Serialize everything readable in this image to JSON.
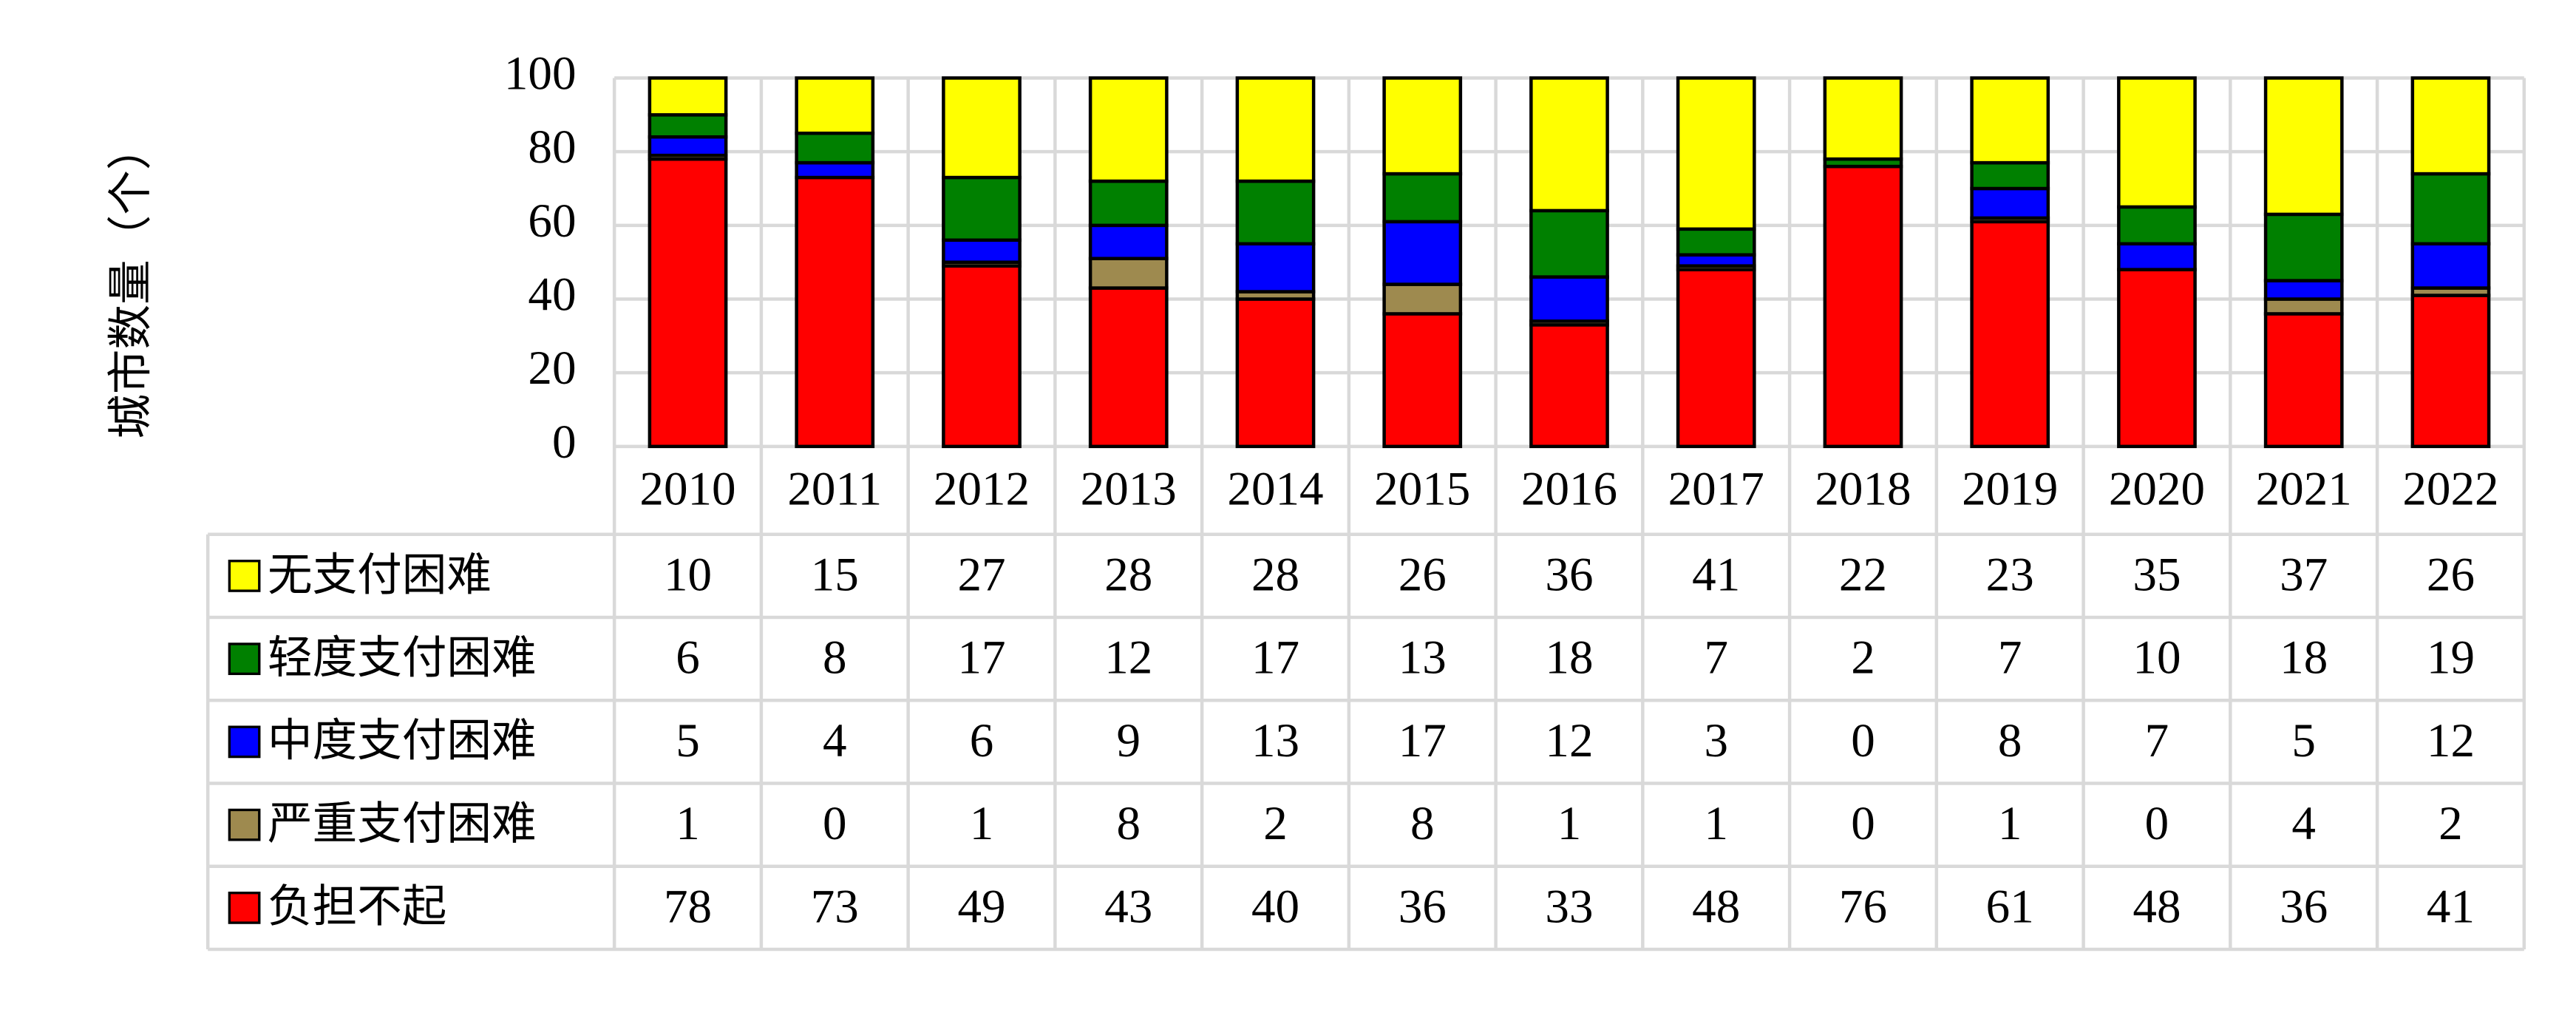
{
  "chart_data": {
    "type": "bar",
    "stacked": true,
    "y_label": "城市数量（个）",
    "categories": [
      "2010",
      "2011",
      "2012",
      "2013",
      "2014",
      "2015",
      "2016",
      "2017",
      "2018",
      "2019",
      "2020",
      "2021",
      "2022"
    ],
    "series": [
      {
        "name": "负担不起",
        "color": "#ff0000",
        "values": [
          78,
          73,
          49,
          43,
          40,
          36,
          33,
          48,
          76,
          61,
          48,
          36,
          41
        ]
      },
      {
        "name": "严重支付困难",
        "color": "#9e8a4f",
        "values": [
          1,
          0,
          1,
          8,
          2,
          8,
          1,
          1,
          0,
          1,
          0,
          4,
          2
        ]
      },
      {
        "name": "中度支付困难",
        "color": "#0000ff",
        "values": [
          5,
          4,
          6,
          9,
          13,
          17,
          12,
          3,
          0,
          8,
          7,
          5,
          12
        ]
      },
      {
        "name": "轻度支付困难",
        "color": "#008000",
        "values": [
          6,
          8,
          17,
          12,
          17,
          13,
          18,
          7,
          2,
          7,
          10,
          18,
          19
        ]
      },
      {
        "name": "无支付困难",
        "color": "#ffff00",
        "values": [
          10,
          15,
          27,
          28,
          28,
          26,
          36,
          41,
          22,
          23,
          35,
          37,
          26
        ]
      }
    ],
    "ylim": [
      0,
      100
    ],
    "yticks": [
      0,
      20,
      40,
      60,
      80,
      100
    ],
    "grid": true
  }
}
